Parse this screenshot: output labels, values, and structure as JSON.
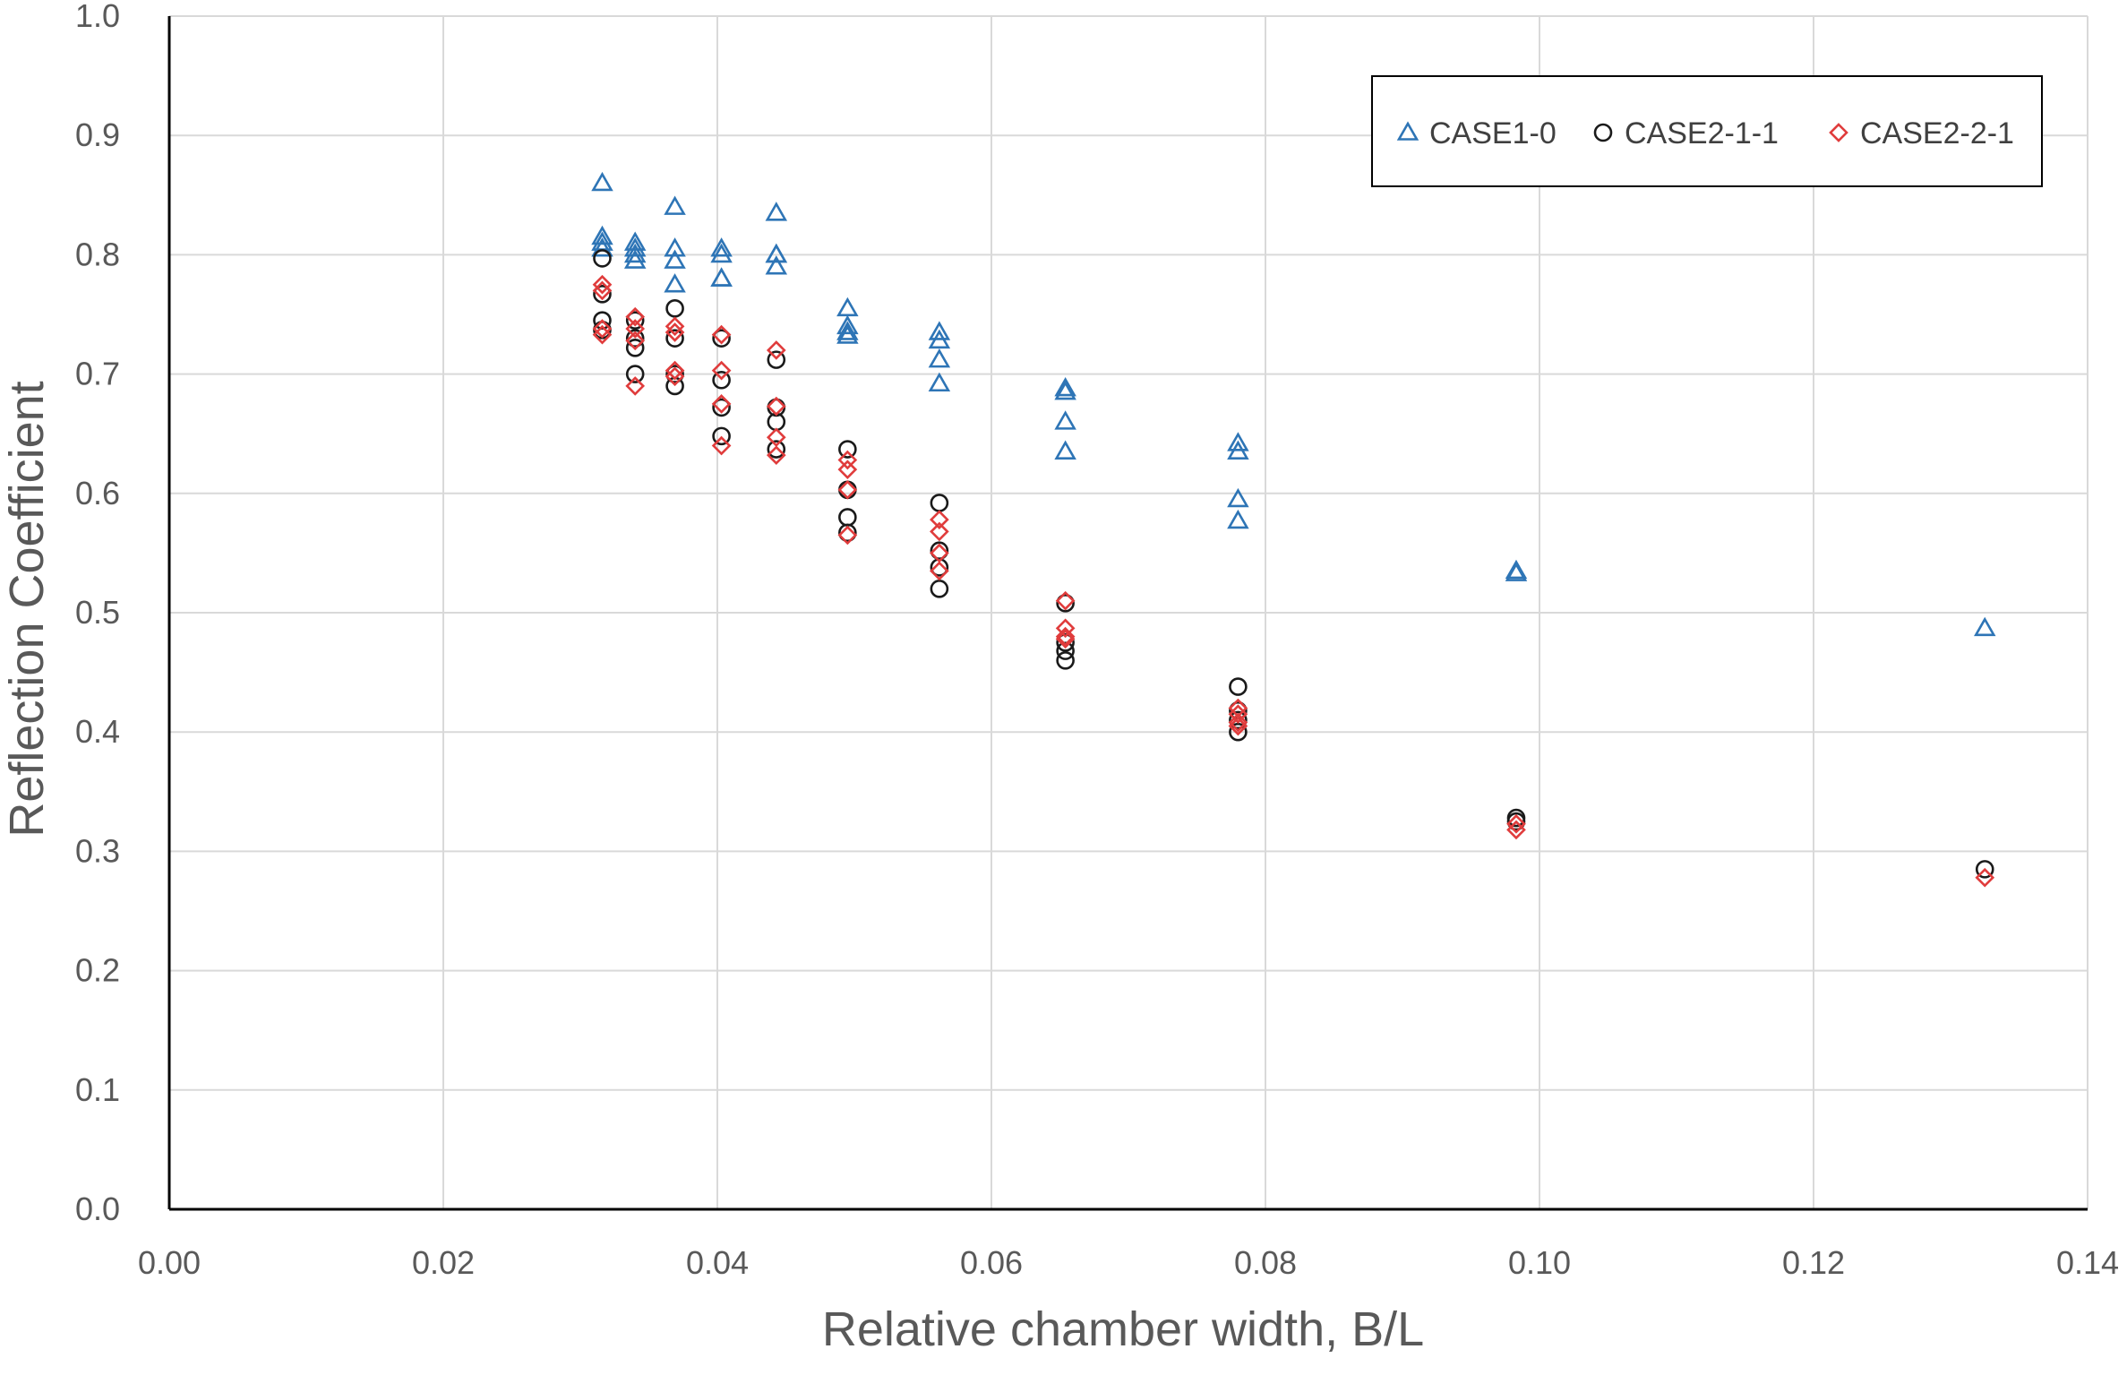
{
  "chart_data": {
    "type": "scatter",
    "title": "",
    "xlabel": "Relative chamber width, B/L",
    "ylabel": "Reflection Coefficient",
    "xlim": [
      0.0,
      0.14
    ],
    "ylim": [
      0.0,
      1.0
    ],
    "x_ticks": [
      "0.00",
      "0.02",
      "0.04",
      "0.06",
      "0.08",
      "0.10",
      "0.12",
      "0.14"
    ],
    "y_ticks": [
      "0.0",
      "0.1",
      "0.2",
      "0.3",
      "0.4",
      "0.5",
      "0.6",
      "0.7",
      "0.8",
      "0.9",
      "1.0"
    ],
    "grid": true,
    "legend_position": "top-right",
    "series": [
      {
        "name": "CASE1-0",
        "marker": "triangle",
        "color": "#2E75B6",
        "points": [
          [
            0.0316,
            0.86
          ],
          [
            0.0316,
            0.815
          ],
          [
            0.0316,
            0.81
          ],
          [
            0.0316,
            0.805
          ],
          [
            0.034,
            0.81
          ],
          [
            0.034,
            0.805
          ],
          [
            0.034,
            0.8
          ],
          [
            0.034,
            0.795
          ],
          [
            0.0369,
            0.84
          ],
          [
            0.0369,
            0.805
          ],
          [
            0.0369,
            0.795
          ],
          [
            0.0369,
            0.775
          ],
          [
            0.0403,
            0.805
          ],
          [
            0.0403,
            0.8
          ],
          [
            0.0403,
            0.78
          ],
          [
            0.0403,
            0.78
          ],
          [
            0.0443,
            0.835
          ],
          [
            0.0443,
            0.8
          ],
          [
            0.0443,
            0.8
          ],
          [
            0.0443,
            0.79
          ],
          [
            0.0495,
            0.755
          ],
          [
            0.0495,
            0.74
          ],
          [
            0.0495,
            0.735
          ],
          [
            0.0495,
            0.732
          ],
          [
            0.0562,
            0.735
          ],
          [
            0.0562,
            0.728
          ],
          [
            0.0562,
            0.712
          ],
          [
            0.0562,
            0.692
          ],
          [
            0.0654,
            0.688
          ],
          [
            0.0654,
            0.685
          ],
          [
            0.0654,
            0.66
          ],
          [
            0.0654,
            0.635
          ],
          [
            0.078,
            0.642
          ],
          [
            0.078,
            0.635
          ],
          [
            0.078,
            0.595
          ],
          [
            0.078,
            0.577
          ],
          [
            0.0983,
            0.535
          ],
          [
            0.0983,
            0.533
          ],
          [
            0.1325,
            0.487
          ]
        ]
      },
      {
        "name": "CASE2-1-1",
        "marker": "circle",
        "color": "#1A1A1A",
        "points": [
          [
            0.0316,
            0.797
          ],
          [
            0.0316,
            0.767
          ],
          [
            0.0316,
            0.745
          ],
          [
            0.0316,
            0.737
          ],
          [
            0.034,
            0.745
          ],
          [
            0.034,
            0.73
          ],
          [
            0.034,
            0.722
          ],
          [
            0.034,
            0.7
          ],
          [
            0.0369,
            0.755
          ],
          [
            0.0369,
            0.73
          ],
          [
            0.0369,
            0.7
          ],
          [
            0.0369,
            0.69
          ],
          [
            0.0403,
            0.73
          ],
          [
            0.0403,
            0.695
          ],
          [
            0.0403,
            0.672
          ],
          [
            0.0403,
            0.648
          ],
          [
            0.0443,
            0.712
          ],
          [
            0.0443,
            0.672
          ],
          [
            0.0443,
            0.66
          ],
          [
            0.0443,
            0.637
          ],
          [
            0.0495,
            0.637
          ],
          [
            0.0495,
            0.603
          ],
          [
            0.0495,
            0.58
          ],
          [
            0.0495,
            0.567
          ],
          [
            0.0562,
            0.592
          ],
          [
            0.0562,
            0.552
          ],
          [
            0.0562,
            0.538
          ],
          [
            0.0562,
            0.52
          ],
          [
            0.0654,
            0.508
          ],
          [
            0.0654,
            0.475
          ],
          [
            0.0654,
            0.468
          ],
          [
            0.0654,
            0.46
          ],
          [
            0.078,
            0.438
          ],
          [
            0.078,
            0.418
          ],
          [
            0.078,
            0.41
          ],
          [
            0.078,
            0.4
          ],
          [
            0.0983,
            0.328
          ],
          [
            0.0983,
            0.325
          ],
          [
            0.1325,
            0.285
          ]
        ]
      },
      {
        "name": "CASE2-2-1",
        "marker": "diamond",
        "color": "#E03C3C",
        "points": [
          [
            0.0316,
            0.775
          ],
          [
            0.0316,
            0.77
          ],
          [
            0.0316,
            0.738
          ],
          [
            0.0316,
            0.733
          ],
          [
            0.034,
            0.748
          ],
          [
            0.034,
            0.738
          ],
          [
            0.034,
            0.728
          ],
          [
            0.034,
            0.69
          ],
          [
            0.0369,
            0.74
          ],
          [
            0.0369,
            0.735
          ],
          [
            0.0369,
            0.703
          ],
          [
            0.0369,
            0.698
          ],
          [
            0.0403,
            0.733
          ],
          [
            0.0403,
            0.703
          ],
          [
            0.0403,
            0.675
          ],
          [
            0.0403,
            0.64
          ],
          [
            0.0443,
            0.72
          ],
          [
            0.0443,
            0.673
          ],
          [
            0.0443,
            0.647
          ],
          [
            0.0443,
            0.632
          ],
          [
            0.0495,
            0.628
          ],
          [
            0.0495,
            0.62
          ],
          [
            0.0495,
            0.603
          ],
          [
            0.0495,
            0.565
          ],
          [
            0.0562,
            0.578
          ],
          [
            0.0562,
            0.568
          ],
          [
            0.0562,
            0.55
          ],
          [
            0.0562,
            0.535
          ],
          [
            0.0654,
            0.51
          ],
          [
            0.0654,
            0.487
          ],
          [
            0.0654,
            0.48
          ],
          [
            0.0654,
            0.478
          ],
          [
            0.078,
            0.42
          ],
          [
            0.078,
            0.415
          ],
          [
            0.078,
            0.408
          ],
          [
            0.078,
            0.405
          ],
          [
            0.0983,
            0.323
          ],
          [
            0.0983,
            0.318
          ],
          [
            0.1325,
            0.278
          ]
        ]
      }
    ]
  }
}
